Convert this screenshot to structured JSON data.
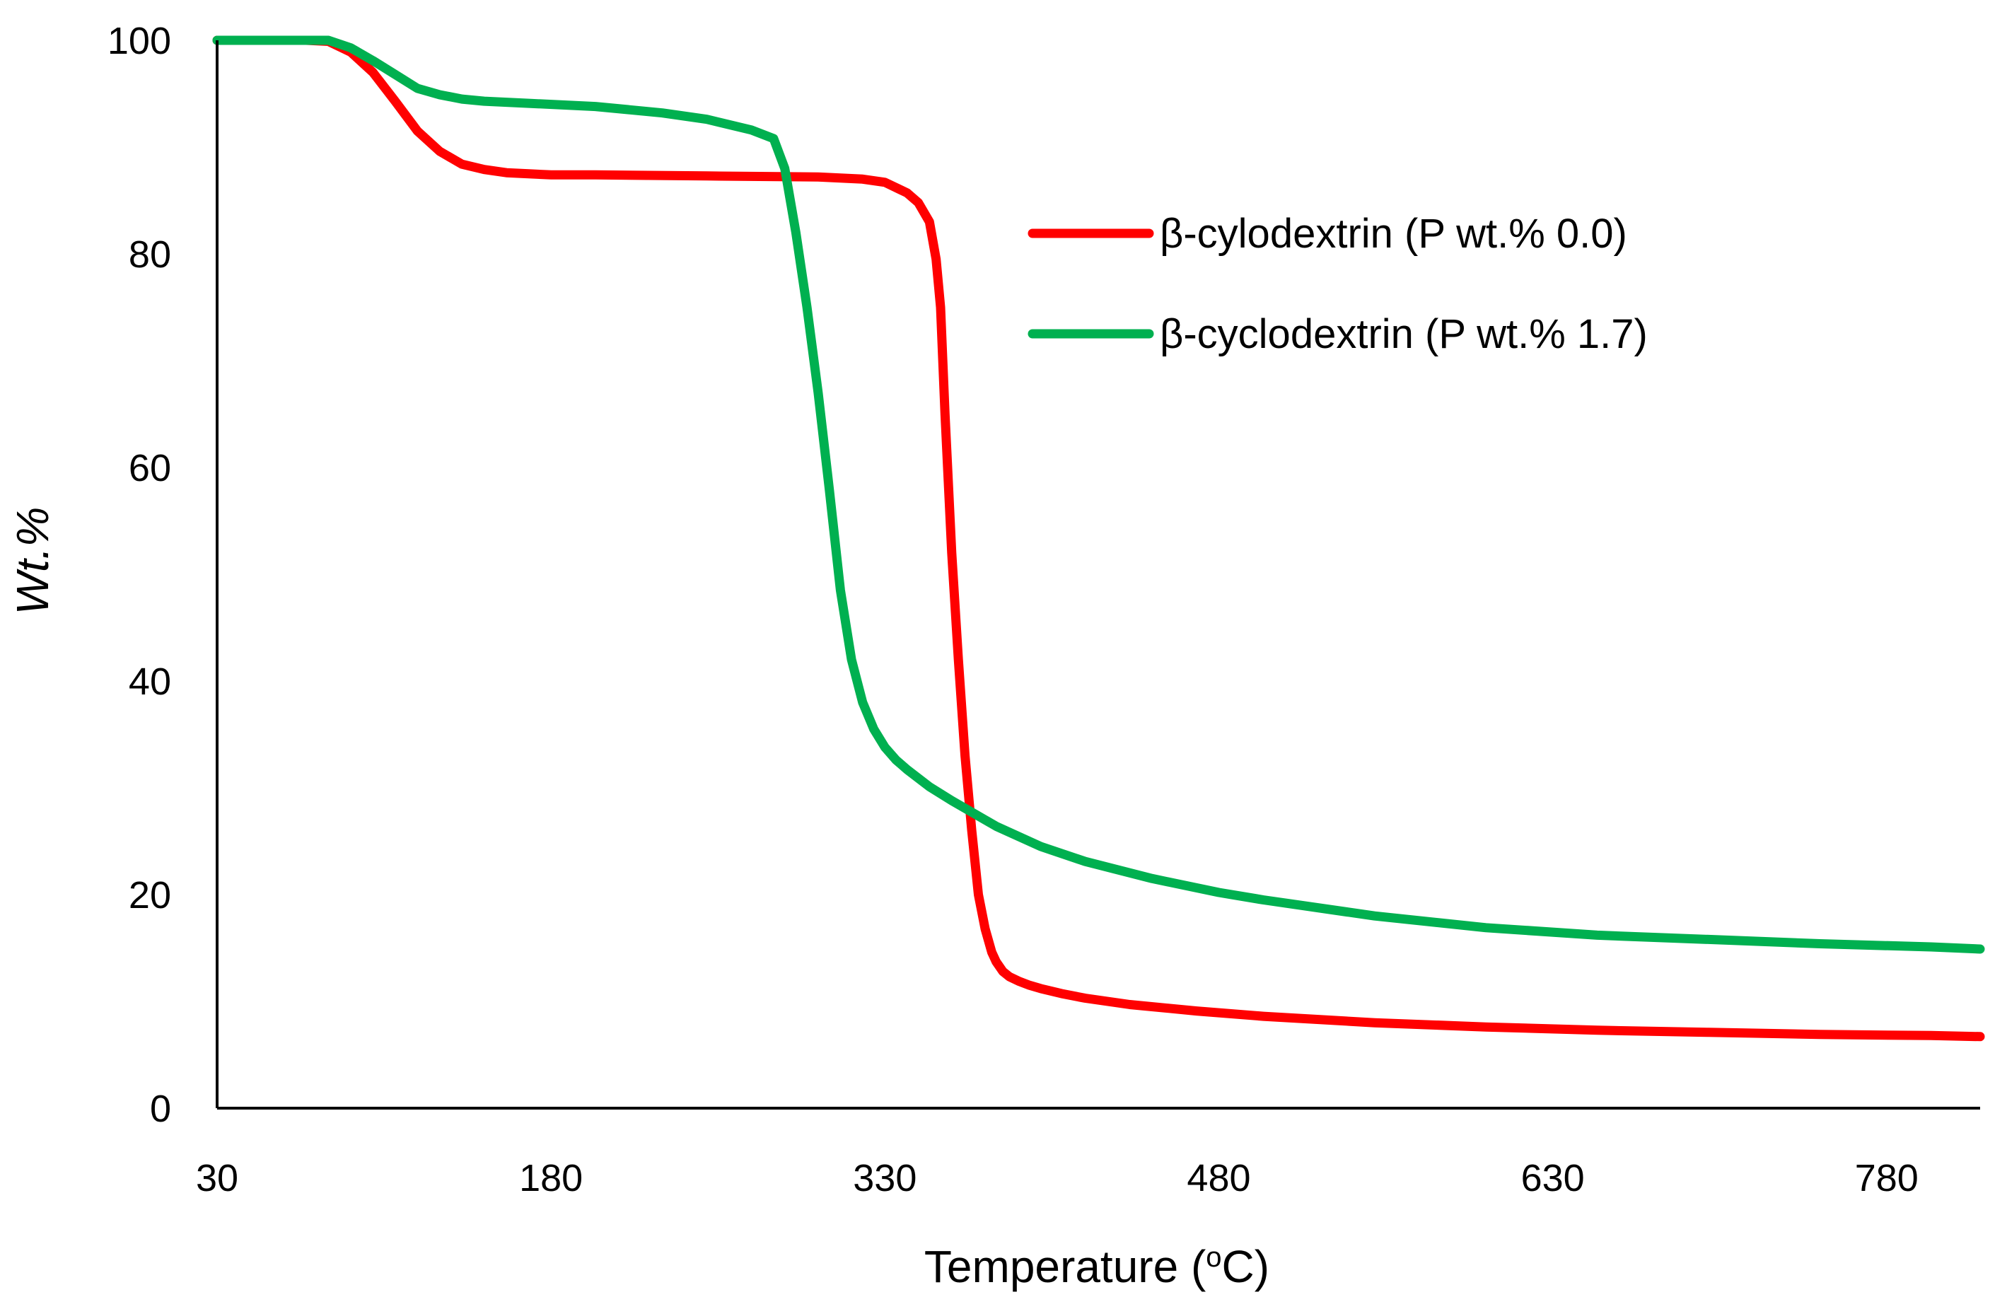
{
  "chart_data": {
    "type": "line",
    "title": "",
    "xlabel_main": "Temperature (",
    "xlabel_sup": "o",
    "xlabel_end": "C)",
    "ylabel": "Wt.%",
    "xlim": [
      30,
      822
    ],
    "ylim": [
      0,
      100
    ],
    "xticks": [
      30,
      180,
      330,
      480,
      630,
      780
    ],
    "yticks": [
      0,
      20,
      40,
      60,
      80,
      100
    ],
    "grid": false,
    "legend_position": "upper-right",
    "series": [
      {
        "name": "β-cylodextrin (P wt.% 0.0)",
        "color": "#ff0000",
        "x": [
          30,
          50,
          70,
          80,
          90,
          100,
          110,
          120,
          130,
          140,
          150,
          160,
          170,
          180,
          200,
          250,
          300,
          320,
          330,
          340,
          345,
          350,
          353,
          355,
          357,
          360,
          363,
          366,
          369,
          372,
          375,
          378,
          380,
          383,
          386,
          390,
          395,
          400,
          410,
          420,
          440,
          470,
          500,
          550,
          600,
          650,
          700,
          750,
          800,
          822
        ],
        "y": [
          100,
          100,
          100,
          99.9,
          98.9,
          97,
          94.3,
          91.5,
          89.6,
          88.4,
          87.9,
          87.6,
          87.5,
          87.4,
          87.4,
          87.3,
          87.2,
          87,
          86.7,
          85.7,
          84.8,
          83,
          79.5,
          75,
          65,
          52,
          42,
          33,
          26,
          20,
          16.8,
          14.6,
          13.7,
          12.8,
          12.3,
          11.9,
          11.5,
          11.2,
          10.7,
          10.3,
          9.7,
          9.1,
          8.6,
          8.0,
          7.6,
          7.3,
          7.1,
          6.9,
          6.8,
          6.7
        ]
      },
      {
        "name": "β-cyclodextrin (P wt.% 1.7)",
        "color": "#00b050",
        "x": [
          30,
          50,
          70,
          80,
          90,
          100,
          110,
          120,
          130,
          140,
          150,
          170,
          200,
          230,
          250,
          270,
          280,
          285,
          290,
          295,
          300,
          305,
          310,
          315,
          320,
          325,
          330,
          335,
          340,
          350,
          360,
          380,
          400,
          420,
          450,
          480,
          500,
          550,
          600,
          650,
          700,
          750,
          800,
          822
        ],
        "y": [
          100,
          100,
          100,
          100,
          99.3,
          98.1,
          96.8,
          95.5,
          94.9,
          94.5,
          94.3,
          94.1,
          93.8,
          93.2,
          92.6,
          91.6,
          90.8,
          88,
          82,
          75,
          67,
          58,
          48.5,
          42,
          38,
          35.5,
          33.8,
          32.6,
          31.7,
          30.1,
          28.8,
          26.4,
          24.5,
          23.1,
          21.5,
          20.2,
          19.5,
          18.0,
          16.9,
          16.2,
          15.8,
          15.4,
          15.1,
          14.9
        ]
      }
    ]
  }
}
